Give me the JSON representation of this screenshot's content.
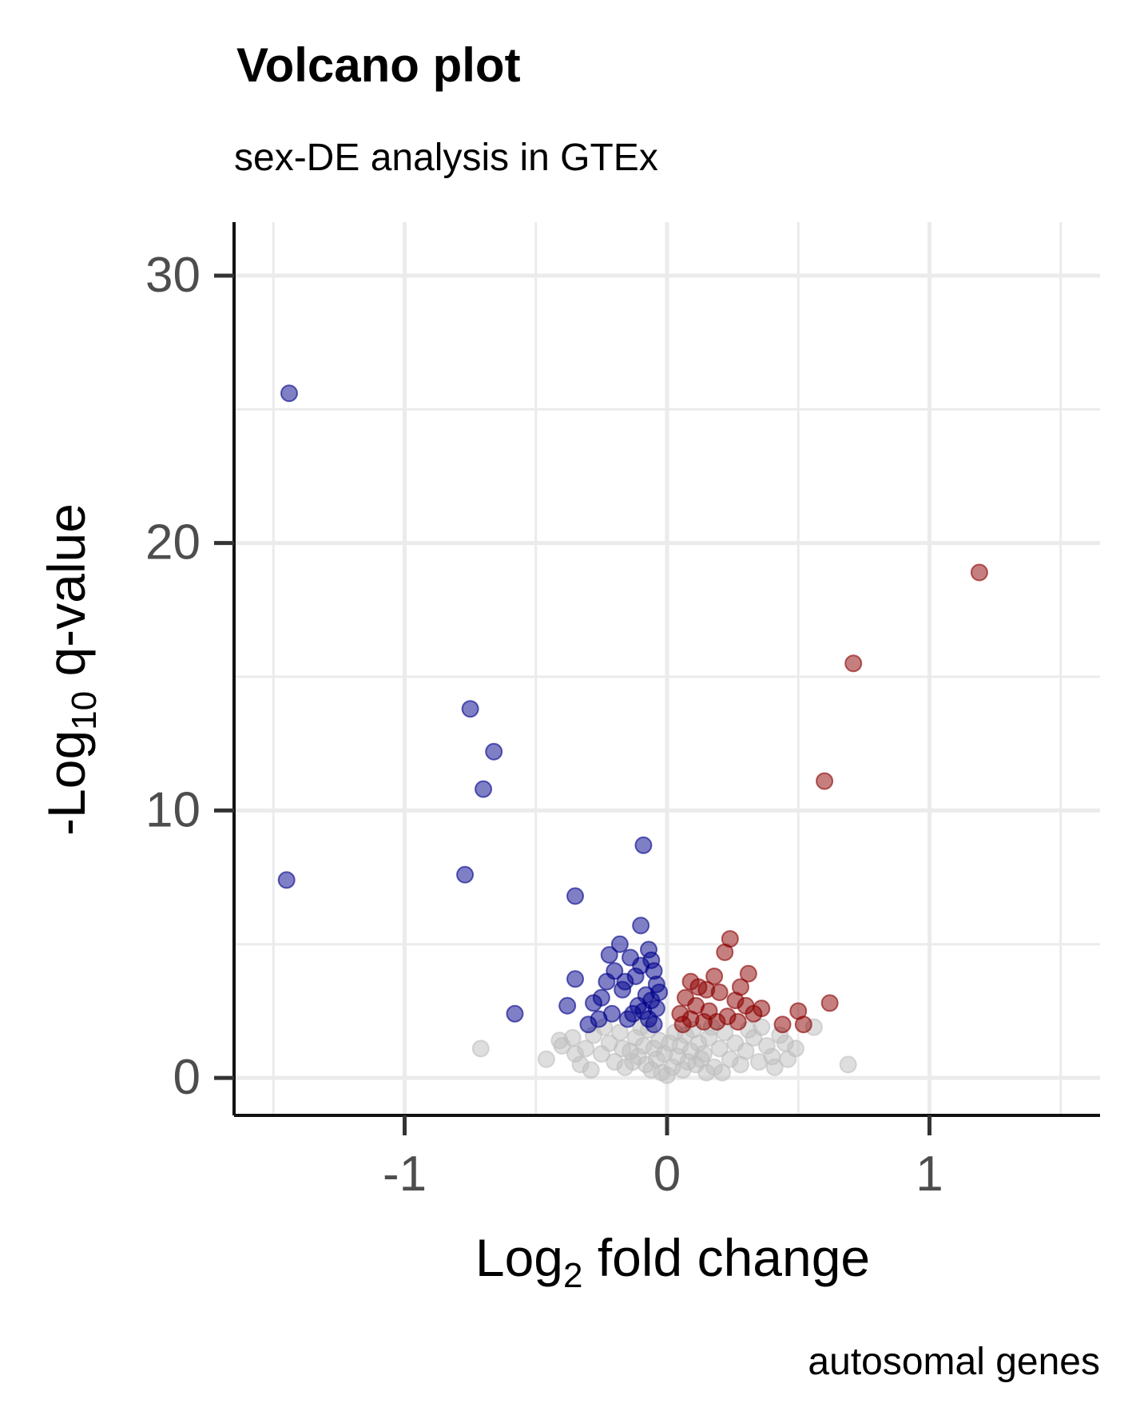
{
  "chart_data": {
    "type": "scatter",
    "title": "Volcano plot",
    "subtitle": "sex-DE analysis in GTEx",
    "xlabel": {
      "base": "Log",
      "sub": "2",
      "rest": " fold change"
    },
    "ylabel": {
      "base": "-Log",
      "sub": "10",
      "rest": " q-value"
    },
    "caption": "autosomal genes",
    "xlim": [
      -1.65,
      1.65
    ],
    "ylim": [
      -1.4,
      32
    ],
    "x_ticks": [
      -1,
      0,
      1
    ],
    "x_tick_labels": [
      "-1",
      "0",
      "1"
    ],
    "y_ticks": [
      0,
      10,
      20,
      30
    ],
    "y_tick_labels": [
      "0",
      "10",
      "20",
      "30"
    ],
    "x_minor_gridlines": [
      -1.5,
      -0.5,
      0.5,
      1.5
    ],
    "y_minor_gridlines": [
      5,
      15,
      25
    ],
    "grid": true,
    "legend": "none",
    "colors": {
      "down": "#00008b",
      "up": "#8b0000",
      "ns": "#bebebe",
      "grid": "#ebebeb",
      "axis": "#111111"
    },
    "series": [
      {
        "group": "down",
        "points": [
          [
            -1.44,
            25.6
          ],
          [
            -1.45,
            7.4
          ],
          [
            -0.75,
            13.8
          ],
          [
            -0.66,
            12.2
          ],
          [
            -0.7,
            10.8
          ],
          [
            -0.77,
            7.6
          ],
          [
            -0.35,
            6.8
          ],
          [
            -0.58,
            2.4
          ],
          [
            -0.38,
            2.7
          ],
          [
            -0.35,
            3.7
          ],
          [
            -0.09,
            8.7
          ],
          [
            -0.1,
            5.7
          ],
          [
            -0.18,
            5.0
          ],
          [
            -0.22,
            4.6
          ],
          [
            -0.14,
            4.5
          ],
          [
            -0.2,
            4.0
          ],
          [
            -0.23,
            3.6
          ],
          [
            -0.17,
            3.3
          ],
          [
            -0.25,
            3.0
          ],
          [
            -0.28,
            2.8
          ],
          [
            -0.21,
            2.4
          ],
          [
            -0.15,
            2.2
          ],
          [
            -0.26,
            2.2
          ],
          [
            -0.3,
            2.0
          ],
          [
            -0.07,
            4.8
          ],
          [
            -0.06,
            4.4
          ],
          [
            -0.05,
            4.0
          ],
          [
            -0.04,
            3.5
          ],
          [
            -0.08,
            3.1
          ],
          [
            -0.06,
            2.9
          ],
          [
            -0.11,
            2.7
          ],
          [
            -0.09,
            2.5
          ],
          [
            -0.13,
            2.4
          ],
          [
            -0.07,
            2.2
          ],
          [
            -0.05,
            2.0
          ],
          [
            -0.12,
            3.8
          ],
          [
            -0.16,
            3.6
          ],
          [
            -0.03,
            3.2
          ],
          [
            -0.1,
            4.2
          ],
          [
            -0.04,
            2.6
          ]
        ]
      },
      {
        "group": "up",
        "points": [
          [
            1.19,
            18.9
          ],
          [
            0.71,
            15.5
          ],
          [
            0.6,
            11.1
          ],
          [
            0.24,
            5.2
          ],
          [
            0.22,
            4.7
          ],
          [
            0.31,
            3.9
          ],
          [
            0.28,
            3.4
          ],
          [
            0.18,
            3.8
          ],
          [
            0.15,
            3.3
          ],
          [
            0.62,
            2.8
          ],
          [
            0.5,
            2.5
          ],
          [
            0.36,
            2.6
          ],
          [
            0.52,
            2.0
          ],
          [
            0.44,
            2.0
          ],
          [
            0.09,
            3.6
          ],
          [
            0.12,
            3.4
          ],
          [
            0.2,
            3.2
          ],
          [
            0.26,
            2.9
          ],
          [
            0.3,
            2.7
          ],
          [
            0.33,
            2.4
          ],
          [
            0.07,
            3.0
          ],
          [
            0.11,
            2.7
          ],
          [
            0.16,
            2.5
          ],
          [
            0.23,
            2.3
          ],
          [
            0.05,
            2.4
          ],
          [
            0.09,
            2.2
          ],
          [
            0.14,
            2.1
          ],
          [
            0.19,
            2.1
          ],
          [
            0.06,
            2.0
          ],
          [
            0.27,
            2.1
          ]
        ]
      },
      {
        "group": "ns",
        "points": [
          [
            -0.71,
            1.1
          ],
          [
            -0.46,
            0.7
          ],
          [
            -0.4,
            1.2
          ],
          [
            -0.41,
            1.4
          ],
          [
            -0.31,
            1.1
          ],
          [
            -0.33,
            0.5
          ],
          [
            -0.28,
            1.6
          ],
          [
            -0.25,
            0.9
          ],
          [
            -0.22,
            1.3
          ],
          [
            -0.2,
            0.6
          ],
          [
            -0.18,
            1.7
          ],
          [
            -0.16,
            0.4
          ],
          [
            -0.14,
            1.0
          ],
          [
            -0.12,
            1.5
          ],
          [
            -0.11,
            0.8
          ],
          [
            -0.09,
            1.2
          ],
          [
            -0.08,
            0.5
          ],
          [
            -0.07,
            1.8
          ],
          [
            -0.06,
            0.3
          ],
          [
            -0.05,
            1.1
          ],
          [
            -0.04,
            0.7
          ],
          [
            -0.03,
            1.4
          ],
          [
            -0.02,
            0.2
          ],
          [
            -0.01,
            0.9
          ],
          [
            0.0,
            0.1
          ],
          [
            0.01,
            1.3
          ],
          [
            0.02,
            0.4
          ],
          [
            0.03,
            1.7
          ],
          [
            0.04,
            0.8
          ],
          [
            0.05,
            1.2
          ],
          [
            0.06,
            0.3
          ],
          [
            0.07,
            1.6
          ],
          [
            0.08,
            0.6
          ],
          [
            0.09,
            1.0
          ],
          [
            0.1,
            1.8
          ],
          [
            0.11,
            0.5
          ],
          [
            0.12,
            1.3
          ],
          [
            0.14,
            0.9
          ],
          [
            0.16,
            1.5
          ],
          [
            0.18,
            0.4
          ],
          [
            0.2,
            1.1
          ],
          [
            0.22,
            1.7
          ],
          [
            0.24,
            0.7
          ],
          [
            0.26,
            1.3
          ],
          [
            0.28,
            0.5
          ],
          [
            0.3,
            1.0
          ],
          [
            0.33,
            1.5
          ],
          [
            0.35,
            0.6
          ],
          [
            0.38,
            1.2
          ],
          [
            0.4,
            0.8
          ],
          [
            0.43,
            1.6
          ],
          [
            0.46,
            0.7
          ],
          [
            0.49,
            1.1
          ],
          [
            0.56,
            1.9
          ],
          [
            0.69,
            0.5
          ],
          [
            -0.24,
            1.9
          ],
          [
            -0.17,
            1.1
          ],
          [
            -0.13,
            0.6
          ],
          [
            0.13,
            0.7
          ],
          [
            0.17,
            1.9
          ],
          [
            0.21,
            0.2
          ],
          [
            0.31,
            1.8
          ],
          [
            -0.35,
            0.9
          ],
          [
            -0.29,
            0.3
          ],
          [
            0.36,
            1.9
          ],
          [
            0.41,
            0.4
          ],
          [
            -0.1,
            1.9
          ],
          [
            0.15,
            0.2
          ],
          [
            -0.36,
            1.5
          ],
          [
            0.45,
            1.3
          ]
        ]
      }
    ]
  }
}
